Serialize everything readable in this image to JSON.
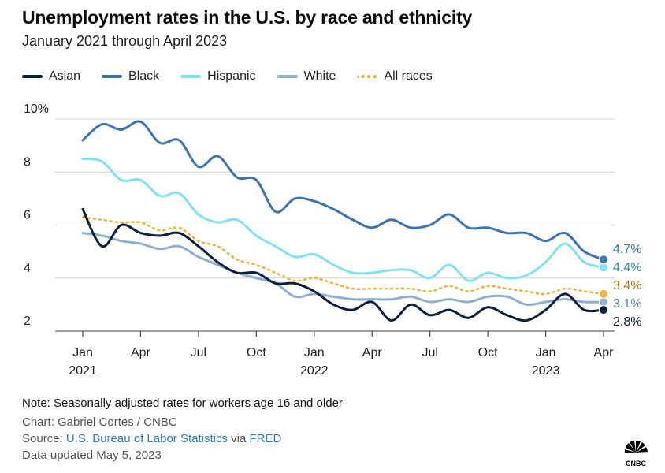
{
  "title": "Unemployment rates in the U.S. by race and ethnicity",
  "subtitle": "January 2021 through April 2023",
  "footer": {
    "note": "Note: Seasonally adjusted rates for workers age 16 and older",
    "credit": "Chart: Gabriel Cortes / CNBC",
    "source_prefix": "Source: ",
    "source_link1": "U.S. Bureau of Labor Statistics",
    "source_via": " via ",
    "source_link2": "FRED",
    "updated": "Data updated May 5, 2023",
    "logo_text": "CNBC"
  },
  "chart_data": {
    "type": "line",
    "title": "Unemployment rates in the U.S. by race and ethnicity",
    "subtitle": "January 2021 through April 2023",
    "xlabel": "",
    "ylabel": "",
    "x": [
      "2021-01",
      "2021-02",
      "2021-03",
      "2021-04",
      "2021-05",
      "2021-06",
      "2021-07",
      "2021-08",
      "2021-09",
      "2021-10",
      "2021-11",
      "2021-12",
      "2022-01",
      "2022-02",
      "2022-03",
      "2022-04",
      "2022-05",
      "2022-06",
      "2022-07",
      "2022-08",
      "2022-09",
      "2022-10",
      "2022-11",
      "2022-12",
      "2023-01",
      "2023-02",
      "2023-03",
      "2023-04"
    ],
    "x_ticks": [
      {
        "label": "Jan",
        "year": "2021",
        "index": 0
      },
      {
        "label": "Apr",
        "year": "",
        "index": 3
      },
      {
        "label": "Jul",
        "year": "",
        "index": 6
      },
      {
        "label": "Oct",
        "year": "",
        "index": 9
      },
      {
        "label": "Jan",
        "year": "2022",
        "index": 12
      },
      {
        "label": "Apr",
        "year": "",
        "index": 15
      },
      {
        "label": "Jul",
        "year": "",
        "index": 18
      },
      {
        "label": "Oct",
        "year": "",
        "index": 21
      },
      {
        "label": "Jan",
        "year": "2023",
        "index": 24
      },
      {
        "label": "Apr",
        "year": "",
        "index": 27
      }
    ],
    "y_ticks": [
      {
        "value": 2,
        "label": "2"
      },
      {
        "value": 4,
        "label": "4"
      },
      {
        "value": 6,
        "label": "6"
      },
      {
        "value": 8,
        "label": "8"
      },
      {
        "value": 10,
        "label": "10%"
      }
    ],
    "ylim": [
      1.6,
      10.4
    ],
    "grid": "horizontal",
    "legend_position": "top-left",
    "series": [
      {
        "name": "Asian",
        "color": "#0b1f3f",
        "dash": false,
        "values": [
          6.6,
          5.2,
          6.0,
          5.7,
          5.6,
          5.7,
          5.2,
          4.6,
          4.2,
          4.2,
          3.8,
          3.8,
          3.5,
          3.0,
          2.8,
          3.1,
          2.4,
          3.0,
          2.6,
          2.8,
          2.5,
          2.9,
          2.6,
          2.4,
          2.8,
          3.4,
          2.8,
          2.8
        ],
        "end_label": "2.8%",
        "end_label_color": "#0b1f3f"
      },
      {
        "name": "Black",
        "color": "#3a74b4",
        "dash": false,
        "values": [
          9.2,
          9.8,
          9.6,
          9.9,
          9.1,
          9.2,
          8.2,
          8.6,
          7.8,
          7.7,
          6.5,
          7.0,
          6.9,
          6.6,
          6.2,
          5.9,
          6.2,
          5.9,
          6.0,
          6.4,
          5.9,
          5.9,
          5.7,
          5.7,
          5.4,
          5.7,
          5.0,
          4.7
        ],
        "end_label": "4.7%",
        "end_label_color": "#3a74b4"
      },
      {
        "name": "Hispanic",
        "color": "#7fe3f5",
        "dash": false,
        "values": [
          8.5,
          8.4,
          7.7,
          7.7,
          7.1,
          7.2,
          6.4,
          6.1,
          6.2,
          5.6,
          5.2,
          4.8,
          4.9,
          4.5,
          4.2,
          4.2,
          4.3,
          4.3,
          4.0,
          4.5,
          3.9,
          4.2,
          4.0,
          4.1,
          4.6,
          5.3,
          4.6,
          4.4
        ],
        "end_label": "4.4%",
        "end_label_color": "#2a8f9f"
      },
      {
        "name": "White",
        "color": "#8fb0cf",
        "dash": false,
        "values": [
          5.7,
          5.6,
          5.4,
          5.3,
          5.1,
          5.2,
          4.8,
          4.5,
          4.2,
          4.0,
          3.8,
          3.3,
          3.4,
          3.3,
          3.2,
          3.2,
          3.2,
          3.3,
          3.1,
          3.2,
          3.1,
          3.3,
          3.3,
          3.0,
          3.1,
          3.2,
          3.1,
          3.1
        ],
        "end_label": "3.1%",
        "end_label_color": "#5c84a8"
      },
      {
        "name": "All races",
        "color": "#f0b43c",
        "dash": true,
        "values": [
          6.3,
          6.2,
          6.1,
          6.1,
          5.8,
          5.9,
          5.4,
          5.2,
          4.7,
          4.5,
          4.2,
          3.9,
          4.0,
          3.8,
          3.6,
          3.6,
          3.6,
          3.6,
          3.5,
          3.7,
          3.5,
          3.7,
          3.6,
          3.5,
          3.4,
          3.6,
          3.5,
          3.4
        ],
        "end_label": "3.4%",
        "end_label_color": "#b37c10"
      }
    ]
  }
}
